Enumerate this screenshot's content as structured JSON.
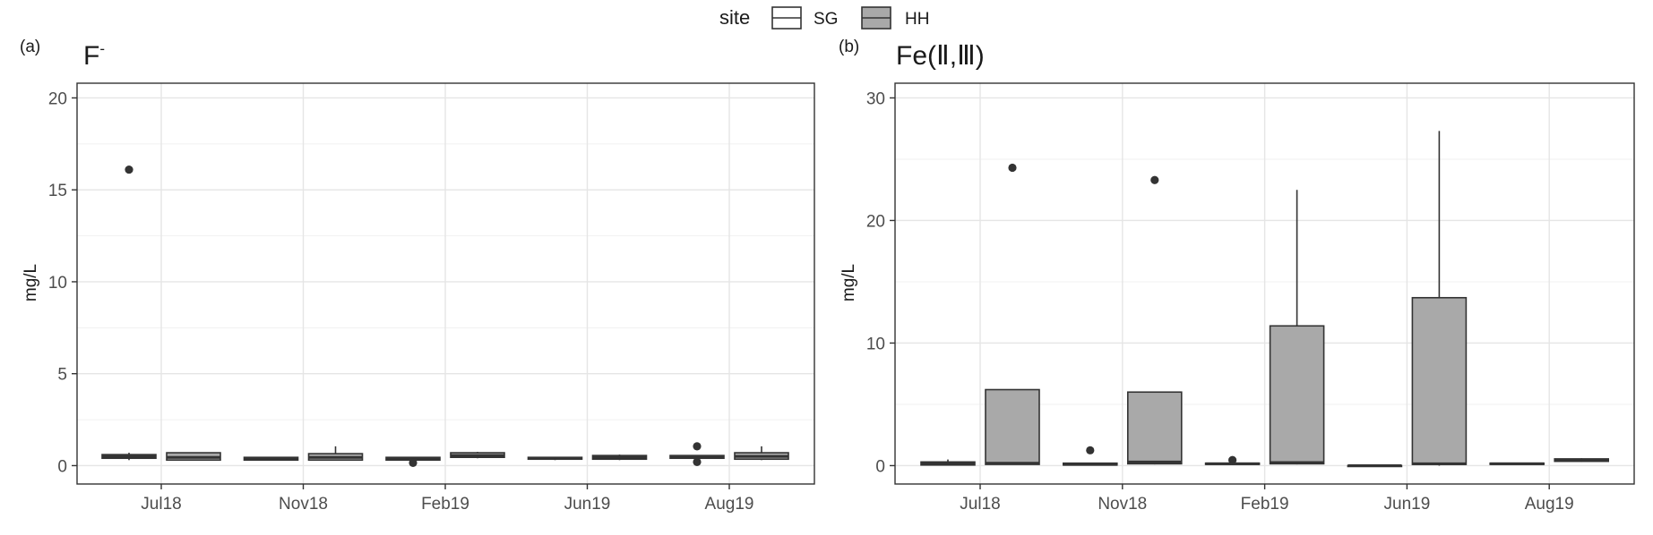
{
  "legend": {
    "title": "site",
    "items": [
      {
        "label": "SG",
        "fill": "#ffffff"
      },
      {
        "label": "HH",
        "fill": "#a9a9a9"
      }
    ]
  },
  "chart_data": [
    {
      "type": "box",
      "panel_tag": "(a)",
      "title": "F",
      "title_superscript": "-",
      "ylabel": "mg/L",
      "xlabel": "",
      "ylim": [
        -1,
        20.8
      ],
      "y_ticks": [
        0,
        5,
        10,
        15,
        20
      ],
      "grid": true,
      "categories": [
        "Jul18",
        "Nov18",
        "Feb19",
        "Jun19",
        "Aug19"
      ],
      "series": [
        {
          "name": "SG",
          "fill": "#ffffff",
          "boxes": [
            {
              "low": 0.3,
              "q1": 0.4,
              "median": 0.5,
              "q3": 0.6,
              "high": 0.7,
              "outliers": [
                16.1
              ]
            },
            {
              "low": 0.3,
              "q1": 0.3,
              "median": 0.35,
              "q3": 0.45,
              "high": 0.45,
              "outliers": []
            },
            {
              "low": 0.25,
              "q1": 0.3,
              "median": 0.35,
              "q3": 0.45,
              "high": 0.45,
              "outliers": [
                0.15
              ]
            },
            {
              "low": 0.3,
              "q1": 0.35,
              "median": 0.4,
              "q3": 0.45,
              "high": 0.45,
              "outliers": []
            },
            {
              "low": 0.4,
              "q1": 0.4,
              "median": 0.45,
              "q3": 0.55,
              "high": 0.55,
              "outliers": [
                1.05,
                0.2
              ]
            }
          ]
        },
        {
          "name": "HH",
          "fill": "#a9a9a9",
          "boxes": [
            {
              "low": 0.3,
              "q1": 0.3,
              "median": 0.45,
              "q3": 0.7,
              "high": 0.7,
              "outliers": []
            },
            {
              "low": 0.3,
              "q1": 0.3,
              "median": 0.45,
              "q3": 0.65,
              "high": 1.05,
              "outliers": []
            },
            {
              "low": 0.4,
              "q1": 0.45,
              "median": 0.55,
              "q3": 0.7,
              "high": 0.75,
              "outliers": []
            },
            {
              "low": 0.3,
              "q1": 0.35,
              "median": 0.45,
              "q3": 0.55,
              "high": 0.6,
              "outliers": []
            },
            {
              "low": 0.3,
              "q1": 0.35,
              "median": 0.5,
              "q3": 0.7,
              "high": 1.05,
              "outliers": []
            }
          ]
        }
      ]
    },
    {
      "type": "box",
      "panel_tag": "(b)",
      "title": "Fe(Ⅱ,Ⅲ)",
      "ylabel": "mg/L",
      "xlabel": "",
      "ylim": [
        -1.5,
        31.2
      ],
      "y_ticks": [
        0,
        10,
        20,
        30
      ],
      "grid": true,
      "categories": [
        "Jul18",
        "Nov18",
        "Feb19",
        "Jun19",
        "Aug19"
      ],
      "series": [
        {
          "name": "SG",
          "fill": "#ffffff",
          "boxes": [
            {
              "low": 0.0,
              "q1": 0.05,
              "median": 0.15,
              "q3": 0.3,
              "high": 0.5,
              "outliers": []
            },
            {
              "low": 0.0,
              "q1": 0.05,
              "median": 0.1,
              "q3": 0.2,
              "high": 0.25,
              "outliers": [
                1.25
              ]
            },
            {
              "low": 0.05,
              "q1": 0.1,
              "median": 0.15,
              "q3": 0.2,
              "high": 0.25,
              "outliers": [
                0.45
              ]
            },
            {
              "low": 0.0,
              "q1": 0.0,
              "median": 0.0,
              "q3": 0.0,
              "high": 0.0,
              "outliers": []
            },
            {
              "low": 0.1,
              "q1": 0.1,
              "median": 0.15,
              "q3": 0.2,
              "high": 0.25,
              "outliers": []
            }
          ]
        },
        {
          "name": "HH",
          "fill": "#a9a9a9",
          "boxes": [
            {
              "low": 0.1,
              "q1": 0.1,
              "median": 0.2,
              "q3": 6.2,
              "high": 6.2,
              "outliers": [
                24.3
              ]
            },
            {
              "low": 0.1,
              "q1": 0.15,
              "median": 0.3,
              "q3": 6.0,
              "high": 6.0,
              "outliers": [
                23.3
              ]
            },
            {
              "low": 0.1,
              "q1": 0.15,
              "median": 0.25,
              "q3": 11.4,
              "high": 22.5,
              "outliers": []
            },
            {
              "low": 0.0,
              "q1": 0.1,
              "median": 0.15,
              "q3": 13.7,
              "high": 27.3,
              "outliers": []
            },
            {
              "low": 0.3,
              "q1": 0.35,
              "median": 0.45,
              "q3": 0.55,
              "high": 0.6,
              "outliers": []
            }
          ]
        }
      ]
    }
  ]
}
